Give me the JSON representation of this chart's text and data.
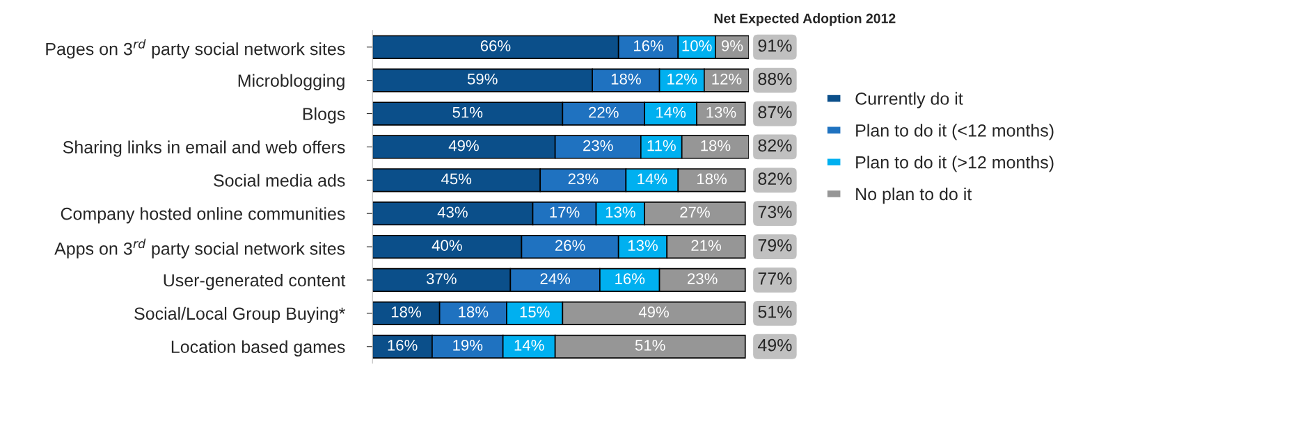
{
  "chart_data": {
    "type": "bar",
    "orientation": "horizontal",
    "stacked": true,
    "legend": "right",
    "grid": false,
    "title": "Net Expected Adoption 2012",
    "categories": [
      "Pages on 3$^{rd}$ party social network sites",
      "Microblogging",
      "Blogs",
      "Sharing links in email and web offers",
      "Social media ads",
      "Company hosted online communities",
      "Apps on 3$^{rd}$ party social network sites",
      "User-generated content",
      "Social/Local Group Buying*",
      "Location based games"
    ],
    "series": [
      {
        "name": "Currently do it",
        "color": "#0b4f8a",
        "values": [
          66,
          59,
          51,
          49,
          45,
          43,
          40,
          37,
          18,
          16
        ],
        "value_labels": [
          "66%",
          "59%",
          "51%",
          "49%",
          "45%",
          "43%",
          "40%",
          "37%",
          "18%",
          "16%"
        ]
      },
      {
        "name": "Plan to do it (<12 months)",
        "color": "#1f72c0",
        "values": [
          16,
          18,
          22,
          23,
          23,
          17,
          26,
          24,
          18,
          19
        ],
        "value_labels": [
          "16%",
          "18%",
          "22%",
          "23%",
          "23%",
          "17%",
          "26%",
          "24%",
          "18%",
          "19%"
        ]
      },
      {
        "name": "Plan to do it (>12 months)",
        "color": "#00b0f0",
        "values": [
          10,
          12,
          14,
          11,
          14,
          13,
          13,
          16,
          15,
          14
        ],
        "value_labels": [
          "10%",
          "12%",
          "14%",
          "11%",
          "14%",
          "13%",
          "13%",
          "16%",
          "15%",
          "14%"
        ]
      },
      {
        "name": "No plan to do it",
        "color": "#969696",
        "values": [
          9,
          12,
          13,
          18,
          18,
          27,
          21,
          23,
          49,
          51
        ],
        "value_labels": [
          "9%",
          "12%",
          "13%",
          "18%",
          "18%",
          "27%",
          "21%",
          "23%",
          "49%",
          "51%"
        ]
      }
    ],
    "annotations": [
      "91%",
      "88%",
      "87%",
      "82%",
      "82%",
      "73%",
      "79%",
      "77%",
      "51%",
      "49%"
    ]
  }
}
